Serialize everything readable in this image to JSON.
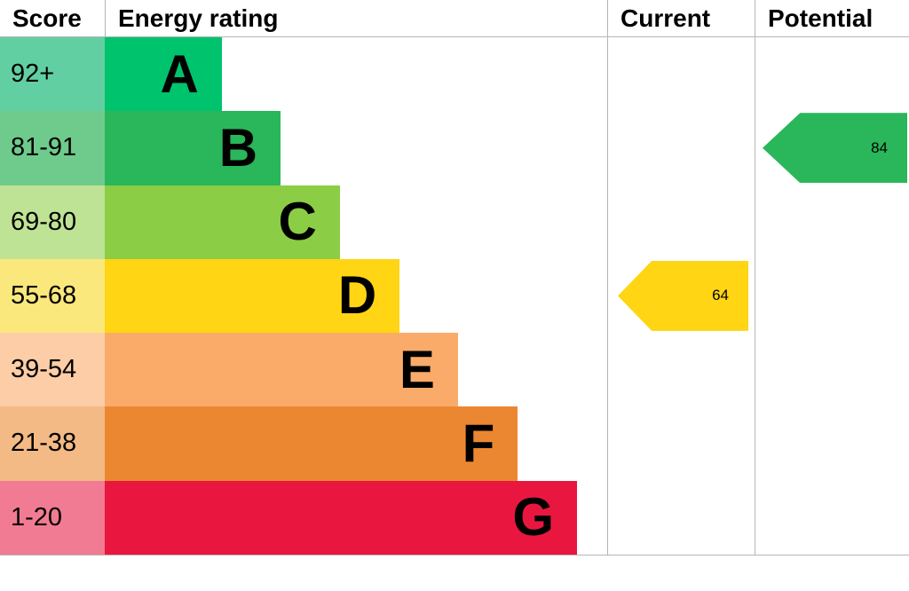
{
  "header": {
    "score": "Score",
    "energy_rating": "Energy rating",
    "current": "Current",
    "potential": "Potential"
  },
  "bands": [
    {
      "letter": "A",
      "score": "92+",
      "color": "#00c36d",
      "tint": "#62cfa3",
      "width_pct": 23.3
    },
    {
      "letter": "B",
      "score": "81-91",
      "color": "#2ab65a",
      "tint": "#6fcb8c",
      "width_pct": 35.0
    },
    {
      "letter": "C",
      "score": "69-80",
      "color": "#8ccd46",
      "tint": "#bfe394",
      "width_pct": 46.8
    },
    {
      "letter": "D",
      "score": "55-68",
      "color": "#ffd514",
      "tint": "#fae87c",
      "width_pct": 58.7
    },
    {
      "letter": "E",
      "score": "39-54",
      "color": "#fbab69",
      "tint": "#fccda6",
      "width_pct": 70.3
    },
    {
      "letter": "F",
      "score": "21-38",
      "color": "#ec8731",
      "tint": "#f3ba85",
      "width_pct": 82.2
    },
    {
      "letter": "G",
      "score": "1-20",
      "color": "#e9173f",
      "tint": "#f17b92",
      "width_pct": 94.0
    }
  ],
  "current": {
    "value": "64",
    "band": "D",
    "color": "#ffd514"
  },
  "potential": {
    "value": "84",
    "band": "B",
    "color": "#2ab65a"
  },
  "chart_data": {
    "type": "bar",
    "orientation": "horizontal",
    "title": "Energy rating",
    "categories": [
      "A",
      "B",
      "C",
      "D",
      "E",
      "F",
      "G"
    ],
    "score_ranges": [
      "92+",
      "81-91",
      "69-80",
      "55-68",
      "39-54",
      "21-38",
      "1-20"
    ],
    "band_colors": [
      "#00c36d",
      "#2ab65a",
      "#8ccd46",
      "#ffd514",
      "#fbab69",
      "#ec8731",
      "#e9173f"
    ],
    "series": [
      {
        "name": "Current",
        "value": 64,
        "band": "D"
      },
      {
        "name": "Potential",
        "value": 84,
        "band": "B"
      }
    ],
    "legend_position": "none",
    "grid": false
  }
}
